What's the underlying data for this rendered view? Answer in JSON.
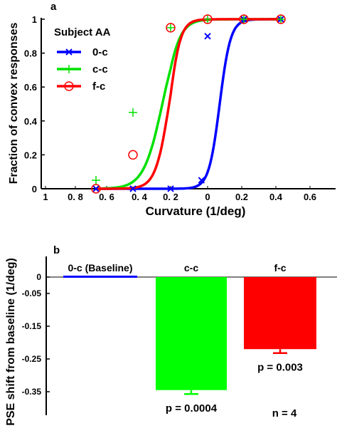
{
  "chart_data": [
    {
      "panel_label": "a",
      "type": "line",
      "ylabel": "Fraction of convex responses",
      "xlabel": "Curvature (1/deg)",
      "ylim": [
        0,
        1
      ],
      "x_tick_labels": [
        "1",
        "0. 8",
        "0. 6",
        "0. 4",
        "0. 2",
        "0",
        "0.2",
        "0.4",
        "0.6"
      ],
      "y_tick_labels": [
        "0",
        "0.2",
        "0.4",
        "0.6",
        "0.8",
        "1"
      ],
      "y_ticks": [
        0,
        0.2,
        0.4,
        0.6,
        0.8,
        1
      ],
      "legend_title": "Subject AA",
      "legend_position": "top-left",
      "stimulus_x": [
        -0.8,
        -0.55,
        -0.3,
        0,
        0.3,
        0.6
      ],
      "series": [
        {
          "name": "0-c",
          "color": "#0000ff",
          "marker": "x",
          "pse": 0.1,
          "slope": 0.045,
          "points": [
            [
              -0.8,
              0
            ],
            [
              -0.55,
              0
            ],
            [
              -0.3,
              0
            ],
            [
              -0.05,
              0.05
            ],
            [
              0,
              0.9
            ],
            [
              0.3,
              1
            ],
            [
              0.6,
              1
            ]
          ]
        },
        {
          "name": "c-c",
          "color": "#00e000",
          "marker": "+",
          "pse": -0.355,
          "slope": 0.062,
          "points": [
            [
              -0.8,
              0.05
            ],
            [
              -0.55,
              0.45
            ],
            [
              -0.3,
              0.95
            ],
            [
              0,
              1
            ],
            [
              0.3,
              1
            ],
            [
              0.6,
              1
            ]
          ]
        },
        {
          "name": "f-c",
          "color": "#ff0000",
          "marker": "o",
          "pse": -0.31,
          "slope": 0.045,
          "points": [
            [
              -0.8,
              0
            ],
            [
              -0.55,
              0.2
            ],
            [
              -0.3,
              0.95
            ],
            [
              0,
              1
            ],
            [
              0.3,
              1
            ],
            [
              0.6,
              1
            ]
          ]
        }
      ]
    },
    {
      "panel_label": "b",
      "type": "bar",
      "ylabel": "PSE shift from baseline (1/deg)",
      "ylim": [
        -0.38,
        0.03
      ],
      "y_tick_labels": [
        "0",
        "-0.05",
        "-0.15",
        "-0.25",
        "-0.35"
      ],
      "y_ticks": [
        0,
        -0.05,
        -0.15,
        -0.25,
        -0.35
      ],
      "categories": [
        "0-c (Baseline)",
        "c-c",
        "f-c"
      ],
      "values": [
        0,
        -0.345,
        -0.22
      ],
      "errors": [
        0,
        0.012,
        0.012
      ],
      "colors": [
        "#0000ff",
        "#00ff00",
        "#ff0000"
      ],
      "p_values": [
        "",
        "p = 0.0004",
        "p = 0.003"
      ],
      "note": "n = 4"
    }
  ]
}
